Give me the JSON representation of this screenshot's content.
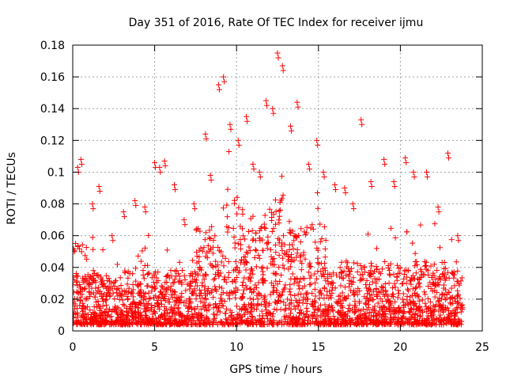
{
  "chart_data": {
    "type": "scatter",
    "title": "Day 351 of 2016, Rate Of TEC Index for receiver ijmu",
    "xlabel": "GPS time / hours",
    "ylabel": "ROTI / TECUs",
    "xlim": [
      0,
      25
    ],
    "ylim": [
      0,
      0.18
    ],
    "x_ticks": [
      "0",
      "5",
      "10",
      "15",
      "20",
      "25"
    ],
    "y_ticks": [
      "0",
      "0.02",
      "0.04",
      "0.06",
      "0.08",
      "0.1",
      "0.12",
      "0.14",
      "0.16",
      "0.18"
    ],
    "grid": true,
    "marker": "plus",
    "color": "#ff0000",
    "series": [
      {
        "x": [
          0.3,
          0.5,
          1.2,
          1.6,
          2.4,
          3.1,
          3.8,
          4.4,
          5.0,
          5.3,
          5.6,
          6.2,
          6.8,
          7.4,
          8.1,
          8.4,
          8.9,
          9.2,
          9.6,
          10.1,
          10.6,
          11.0,
          11.4,
          11.8,
          12.2,
          12.5,
          12.8,
          13.3,
          13.7,
          14.4,
          14.9,
          15.3,
          16.0,
          16.6,
          17.1,
          17.6,
          18.2,
          19.0,
          19.6,
          20.3,
          20.8,
          21.6,
          22.3,
          22.9,
          23.5
        ],
        "y": [
          0.103,
          0.108,
          0.08,
          0.091,
          0.06,
          0.075,
          0.082,
          0.078,
          0.106,
          0.103,
          0.107,
          0.092,
          0.07,
          0.08,
          0.124,
          0.098,
          0.155,
          0.16,
          0.13,
          0.12,
          0.135,
          0.105,
          0.1,
          0.145,
          0.14,
          0.175,
          0.167,
          0.129,
          0.144,
          0.105,
          0.12,
          0.1,
          0.092,
          0.09,
          0.08,
          0.133,
          0.094,
          0.108,
          0.094,
          0.109,
          0.1,
          0.1,
          0.078,
          0.112,
          0.06
        ]
      }
    ]
  }
}
